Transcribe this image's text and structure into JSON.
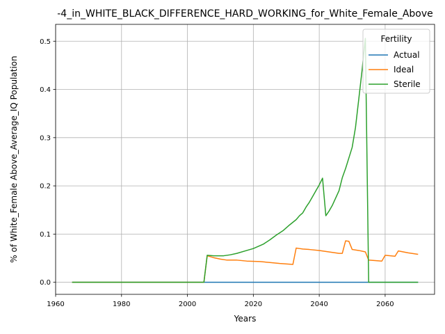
{
  "chart_data": {
    "type": "line",
    "title": "-4_in_WHITE_BLACK_DIFFERENCE_HARD_WORKING_for_White_Female_Above",
    "xlabel": "Years",
    "ylabel": "% of White_Female Above_Average_IQ Population",
    "xlim": [
      1960,
      2075
    ],
    "ylim": [
      -0.025,
      0.535
    ],
    "xticks": [
      1960,
      1980,
      2000,
      2020,
      2040,
      2060
    ],
    "xtick_labels": [
      "1960",
      "1980",
      "2000",
      "2020",
      "2040",
      "2060"
    ],
    "yticks": [
      0.0,
      0.1,
      0.2,
      0.3,
      0.4,
      0.5
    ],
    "ytick_labels": [
      "0.0",
      "0.1",
      "0.2",
      "0.3",
      "0.4",
      "0.5"
    ],
    "grid": true,
    "legend": {
      "title": "Fertility",
      "placement": "top-right"
    },
    "series": [
      {
        "name": "Actual",
        "color": "#1f77b4",
        "points": [
          [
            1965,
            0.0
          ],
          [
            2070,
            0.0
          ]
        ]
      },
      {
        "name": "Ideal",
        "color": "#ff7f0e",
        "points": [
          [
            1965,
            0.0
          ],
          [
            2005,
            0.0
          ],
          [
            2006,
            0.055
          ],
          [
            2008,
            0.051
          ],
          [
            2010,
            0.048
          ],
          [
            2012,
            0.046
          ],
          [
            2015,
            0.046
          ],
          [
            2018,
            0.044
          ],
          [
            2022,
            0.043
          ],
          [
            2025,
            0.041
          ],
          [
            2028,
            0.039
          ],
          [
            2032,
            0.037
          ],
          [
            2033,
            0.071
          ],
          [
            2034,
            0.07
          ],
          [
            2035,
            0.069
          ],
          [
            2037,
            0.068
          ],
          [
            2040,
            0.066
          ],
          [
            2042,
            0.064
          ],
          [
            2044,
            0.062
          ],
          [
            2046,
            0.06
          ],
          [
            2047,
            0.06
          ],
          [
            2048,
            0.086
          ],
          [
            2049,
            0.085
          ],
          [
            2050,
            0.068
          ],
          [
            2052,
            0.066
          ],
          [
            2054,
            0.063
          ],
          [
            2055,
            0.046
          ],
          [
            2057,
            0.045
          ],
          [
            2059,
            0.044
          ],
          [
            2060,
            0.056
          ],
          [
            2063,
            0.054
          ],
          [
            2064,
            0.065
          ],
          [
            2067,
            0.061
          ],
          [
            2070,
            0.058
          ]
        ]
      },
      {
        "name": "Sterile",
        "color": "#2ca02c",
        "points": [
          [
            1965,
            0.0
          ],
          [
            2005,
            0.0
          ],
          [
            2006,
            0.056
          ],
          [
            2008,
            0.055
          ],
          [
            2011,
            0.055
          ],
          [
            2013,
            0.057
          ],
          [
            2015,
            0.06
          ],
          [
            2018,
            0.066
          ],
          [
            2020,
            0.07
          ],
          [
            2023,
            0.079
          ],
          [
            2025,
            0.088
          ],
          [
            2027,
            0.098
          ],
          [
            2029,
            0.107
          ],
          [
            2031,
            0.119
          ],
          [
            2033,
            0.13
          ],
          [
            2034,
            0.138
          ],
          [
            2035,
            0.144
          ],
          [
            2036,
            0.156
          ],
          [
            2037,
            0.166
          ],
          [
            2038,
            0.178
          ],
          [
            2039,
            0.19
          ],
          [
            2040,
            0.202
          ],
          [
            2041,
            0.216
          ],
          [
            2042,
            0.138
          ],
          [
            2043,
            0.148
          ],
          [
            2044,
            0.16
          ],
          [
            2045,
            0.175
          ],
          [
            2046,
            0.19
          ],
          [
            2047,
            0.217
          ],
          [
            2048,
            0.236
          ],
          [
            2049,
            0.258
          ],
          [
            2050,
            0.28
          ],
          [
            2051,
            0.321
          ],
          [
            2052,
            0.38
          ],
          [
            2053,
            0.44
          ],
          [
            2054,
            0.506
          ],
          [
            2055,
            0.0
          ],
          [
            2070,
            0.0
          ]
        ]
      }
    ]
  }
}
